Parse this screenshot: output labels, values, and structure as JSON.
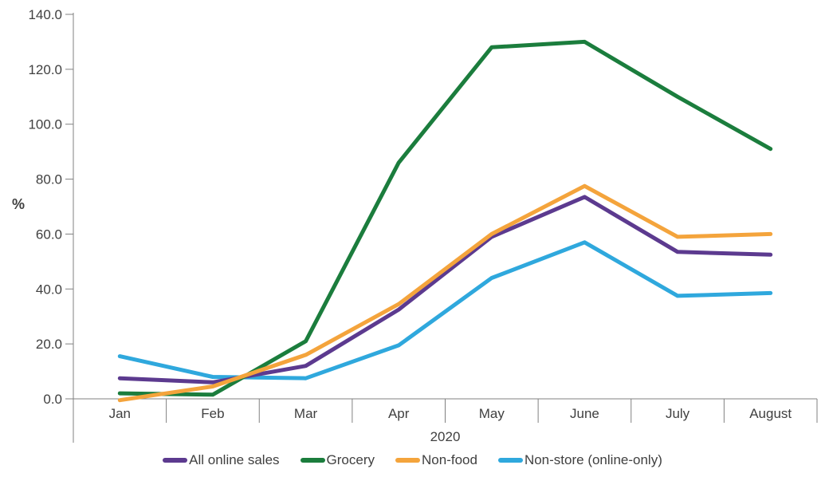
{
  "chart_data": {
    "type": "line",
    "title": "",
    "ylabel": "%",
    "xlabel": "2020",
    "categories": [
      "Jan",
      "Feb",
      "Mar",
      "Apr",
      "May",
      "June",
      "July",
      "August"
    ],
    "series": [
      {
        "name": "All online sales",
        "color": "#5C3A8F",
        "values": [
          7.5,
          6.0,
          12.0,
          32.5,
          59.0,
          73.5,
          53.5,
          52.5
        ]
      },
      {
        "name": "Grocery",
        "color": "#1B7D3D",
        "values": [
          2.0,
          1.5,
          21.0,
          86.0,
          128.0,
          130.0,
          110.0,
          91.0
        ]
      },
      {
        "name": "Non-food",
        "color": "#F4A43C",
        "values": [
          -0.5,
          4.5,
          16.0,
          34.5,
          60.0,
          77.5,
          59.0,
          60.0
        ]
      },
      {
        "name": "Non-store (online-only)",
        "color": "#2FA8DD",
        "values": [
          15.5,
          8.0,
          7.5,
          19.5,
          44.0,
          57.0,
          37.5,
          38.5
        ]
      }
    ],
    "y_ticks": [
      0,
      20,
      40,
      60,
      80,
      100,
      120,
      140
    ],
    "y_tick_labels": [
      "0.0",
      "20.0",
      "40.0",
      "60.0",
      "80.0",
      "100.0",
      "120.0",
      "140.0"
    ],
    "ylim": [
      0,
      140
    ],
    "grid": false,
    "legend_position": "bottom",
    "axis_color": "#808080",
    "text_color": "#404040",
    "line_width": 5,
    "draw_order": [
      3,
      0,
      1,
      2
    ]
  }
}
